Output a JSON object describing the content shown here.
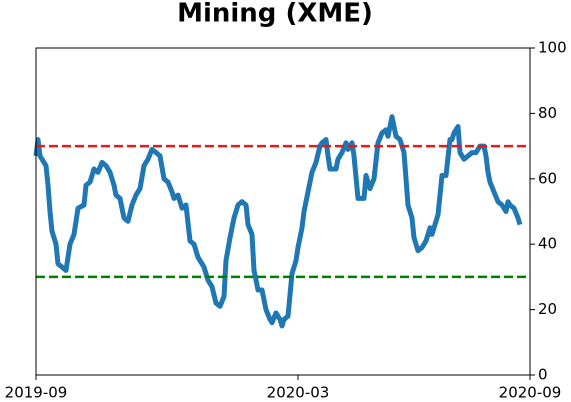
{
  "chart_data": {
    "type": "line",
    "title": "Mining (XME)",
    "x": [
      0,
      1,
      2,
      5,
      6,
      7,
      8,
      10,
      11,
      13,
      15,
      17,
      19,
      21,
      24,
      25,
      27,
      29,
      31,
      33,
      35,
      37,
      39,
      40,
      42,
      44,
      46,
      48,
      50,
      52,
      54,
      56,
      58,
      60,
      62,
      64,
      66,
      68,
      69,
      71,
      73,
      75,
      77,
      79,
      81,
      84,
      86,
      88,
      90,
      92,
      94,
      95,
      97,
      99,
      101,
      103,
      105,
      106,
      108,
      109,
      111,
      113,
      115,
      117,
      118,
      120,
      122,
      123,
      124,
      126,
      128,
      130,
      131,
      133,
      134,
      136,
      138,
      140,
      142,
      143,
      145,
      146,
      147,
      150,
      151,
      153,
      155,
      156,
      158,
      159,
      161,
      164,
      165,
      167,
      169,
      171,
      173,
      175,
      176,
      178,
      180,
      182,
      184,
      186,
      188,
      189,
      191,
      193,
      195,
      197,
      198,
      199,
      201,
      203,
      205,
      207,
      208,
      209,
      211,
      212,
      214,
      216,
      218,
      220,
      222,
      224,
      225,
      226,
      227,
      229,
      231,
      233,
      235,
      236,
      237,
      239,
      241,
      242
    ],
    "values": [
      67,
      72,
      67,
      64,
      58,
      50,
      44,
      40,
      34,
      33,
      32,
      40,
      43,
      51,
      52,
      58,
      59,
      63,
      62,
      65,
      64,
      62,
      58,
      55,
      54,
      48,
      47,
      52,
      55,
      57,
      64,
      66,
      69,
      68,
      67,
      60,
      59,
      56,
      54,
      55,
      51,
      52,
      41,
      40,
      36,
      33,
      29,
      27,
      22,
      21,
      24,
      35,
      42,
      48,
      52,
      53,
      52,
      46,
      43,
      32,
      26,
      26,
      20,
      17,
      16,
      19,
      17,
      15,
      17,
      18,
      31,
      35,
      39,
      45,
      50,
      56,
      62,
      65,
      70,
      71,
      72,
      67,
      63,
      63,
      66,
      68,
      71,
      69,
      71,
      67,
      54,
      54,
      61,
      57,
      60,
      71,
      74,
      75,
      73,
      79,
      73,
      72,
      68,
      52,
      48,
      42,
      38,
      39,
      41,
      45,
      43,
      45,
      49,
      61,
      61,
      72,
      72,
      74,
      76,
      68,
      66,
      67,
      68,
      68,
      70,
      70,
      67,
      62,
      59,
      56,
      53,
      52,
      50,
      53,
      52,
      51,
      48,
      46
    ],
    "color": "#1f77b4",
    "xlim": [
      0,
      247
    ],
    "xticks": [
      {
        "value": 0,
        "label": "2019-09"
      },
      {
        "value": 131,
        "label": "2020-03"
      },
      {
        "value": 247,
        "label": "2020-09"
      }
    ],
    "ylim": [
      0,
      100
    ],
    "yticks": [
      0,
      20,
      40,
      60,
      80,
      100
    ],
    "hlines": [
      {
        "value": 70,
        "color": "#e41a1c"
      },
      {
        "value": 30,
        "color": "#008000"
      }
    ]
  }
}
